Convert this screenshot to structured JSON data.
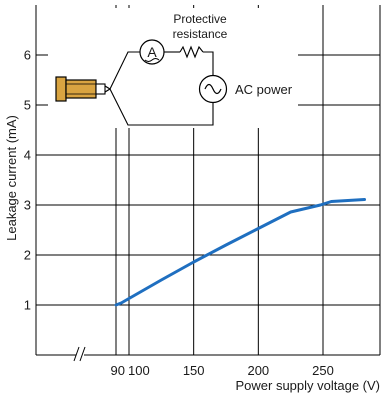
{
  "chart_data": {
    "type": "line",
    "title": "",
    "xlabel": "Power supply voltage (V)",
    "ylabel": "Leakage current (mA)",
    "xlim": [
      82,
      263
    ],
    "ylim": [
      0,
      7
    ],
    "x_ticks": [
      90,
      100,
      150,
      200,
      250
    ],
    "x_tick_labels": [
      "90",
      "100",
      "150",
      "200",
      "250"
    ],
    "y_ticks": [
      1,
      2,
      3,
      4,
      5,
      6
    ],
    "y_tick_labels": [
      "1",
      "2",
      "3",
      "4",
      "5",
      "6"
    ],
    "x_axis_break": true,
    "grid": true,
    "series": [
      {
        "color": "#1f6fc0",
        "x": [
          90,
          94,
          100,
          125,
          150,
          175,
          200,
          225,
          248,
          252,
          260
        ],
        "y": [
          1.0,
          1.04,
          1.13,
          1.5,
          1.86,
          2.2,
          2.53,
          2.86,
          3.0,
          3.07,
          3.11
        ]
      }
    ]
  },
  "diagram": {
    "protective_label_line1": "Protective",
    "protective_label_line2": "resistance",
    "ammeter_symbol": "A",
    "ac_label": "AC power",
    "probe_icon": "plug-probe-icon",
    "ac_icon": "ac-source-icon"
  },
  "colors": {
    "series": "#1f6fc0",
    "probe_fill": "#d9a441",
    "grid": "#000000"
  }
}
